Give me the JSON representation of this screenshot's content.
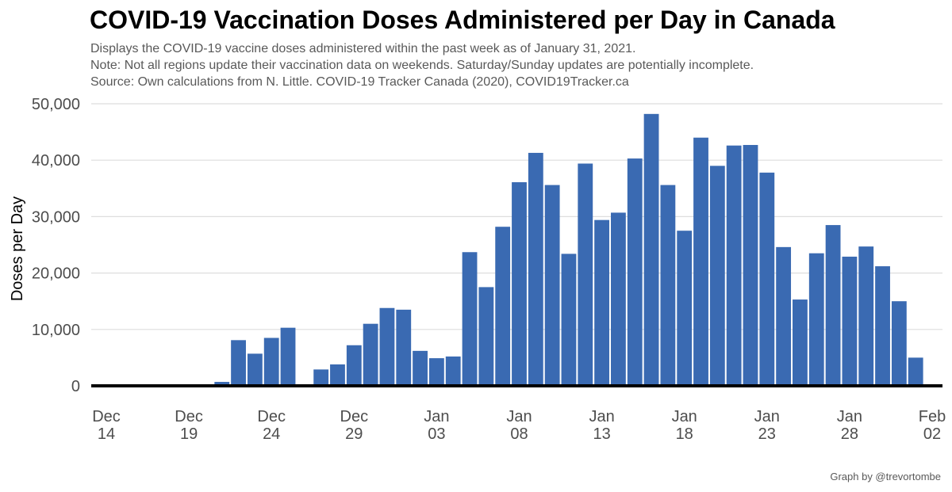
{
  "chart_data": {
    "type": "bar",
    "title": "COVID-19 Vaccination Doses Administered per Day in Canada",
    "subtitle": [
      "Displays the COVID-19 vaccine doses administered within the past week as of January 31, 2021.",
      "Note: Not all regions update their vaccination data on weekends. Saturday/Sunday updates are potentially incomplete.",
      "Source: Own calculations from N. Little. COVID-19 Tracker Canada (2020), COVID19Tracker.ca"
    ],
    "ylabel": "Doses per Day",
    "ylim": [
      0,
      50000
    ],
    "yticks": [
      0,
      10000,
      20000,
      30000,
      40000,
      50000
    ],
    "ytick_labels": [
      "0",
      "10,000",
      "20,000",
      "30,000",
      "40,000",
      "50,000"
    ],
    "xlim": [
      "2020-12-14",
      "2021-02-02"
    ],
    "xticks": [
      {
        "date": "2020-12-14",
        "month": "Dec",
        "day": "14"
      },
      {
        "date": "2020-12-19",
        "month": "Dec",
        "day": "19"
      },
      {
        "date": "2020-12-24",
        "month": "Dec",
        "day": "24"
      },
      {
        "date": "2020-12-29",
        "month": "Dec",
        "day": "29"
      },
      {
        "date": "2021-01-03",
        "month": "Jan",
        "day": "03"
      },
      {
        "date": "2021-01-08",
        "month": "Jan",
        "day": "08"
      },
      {
        "date": "2021-01-13",
        "month": "Jan",
        "day": "13"
      },
      {
        "date": "2021-01-18",
        "month": "Jan",
        "day": "18"
      },
      {
        "date": "2021-01-23",
        "month": "Jan",
        "day": "23"
      },
      {
        "date": "2021-01-28",
        "month": "Jan",
        "day": "28"
      },
      {
        "date": "2021-02-02",
        "month": "Feb",
        "day": "02"
      }
    ],
    "grid": true,
    "bar_color": "#3a6ab2",
    "data": [
      {
        "date": "2020-12-21",
        "value": 700
      },
      {
        "date": "2020-12-22",
        "value": 8100
      },
      {
        "date": "2020-12-23",
        "value": 5700
      },
      {
        "date": "2020-12-24",
        "value": 8500
      },
      {
        "date": "2020-12-25",
        "value": 10300
      },
      {
        "date": "2020-12-27",
        "value": 2900
      },
      {
        "date": "2020-12-28",
        "value": 3800
      },
      {
        "date": "2020-12-29",
        "value": 7200
      },
      {
        "date": "2020-12-30",
        "value": 11000
      },
      {
        "date": "2020-12-31",
        "value": 13800
      },
      {
        "date": "2021-01-01",
        "value": 13500
      },
      {
        "date": "2021-01-02",
        "value": 6200
      },
      {
        "date": "2021-01-03",
        "value": 4900
      },
      {
        "date": "2021-01-04",
        "value": 5200
      },
      {
        "date": "2021-01-05",
        "value": 23700
      },
      {
        "date": "2021-01-06",
        "value": 17500
      },
      {
        "date": "2021-01-07",
        "value": 28200
      },
      {
        "date": "2021-01-08",
        "value": 36100
      },
      {
        "date": "2021-01-09",
        "value": 41300
      },
      {
        "date": "2021-01-10",
        "value": 35600
      },
      {
        "date": "2021-01-11",
        "value": 23400
      },
      {
        "date": "2021-01-12",
        "value": 39400
      },
      {
        "date": "2021-01-13",
        "value": 29400
      },
      {
        "date": "2021-01-14",
        "value": 30700
      },
      {
        "date": "2021-01-15",
        "value": 40300
      },
      {
        "date": "2021-01-16",
        "value": 48200
      },
      {
        "date": "2021-01-17",
        "value": 35600
      },
      {
        "date": "2021-01-18",
        "value": 27500
      },
      {
        "date": "2021-01-19",
        "value": 44000
      },
      {
        "date": "2021-01-20",
        "value": 39000
      },
      {
        "date": "2021-01-21",
        "value": 42600
      },
      {
        "date": "2021-01-22",
        "value": 42700
      },
      {
        "date": "2021-01-23",
        "value": 37800
      },
      {
        "date": "2021-01-24",
        "value": 24600
      },
      {
        "date": "2021-01-25",
        "value": 15300
      },
      {
        "date": "2021-01-26",
        "value": 23500
      },
      {
        "date": "2021-01-27",
        "value": 28500
      },
      {
        "date": "2021-01-28",
        "value": 22900
      },
      {
        "date": "2021-01-29",
        "value": 24700
      },
      {
        "date": "2021-01-30",
        "value": 21200
      },
      {
        "date": "2021-01-31",
        "value": 15000
      },
      {
        "date": "2021-02-01",
        "value": 5000
      }
    ]
  },
  "credit": "Graph by @trevortombe"
}
